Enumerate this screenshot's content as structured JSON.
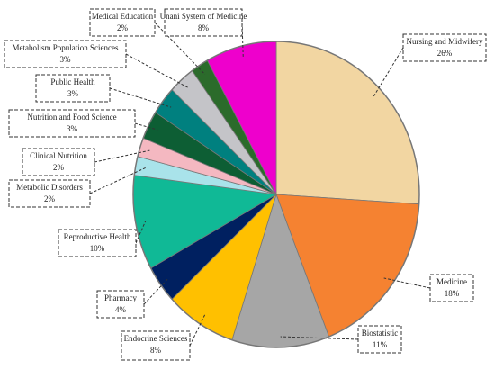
{
  "chart_data": {
    "type": "pie",
    "categories": [
      "Nursing and Midwifery",
      "Medicine",
      "Biostatistic",
      "Endocrine Sciences",
      "Pharmacy",
      "Reproductive Health",
      "Metabolic Disorders",
      "Clinical Nutrition",
      "Nutrition and Food Science",
      "Public Health",
      "Metabolism Population Sciences",
      "Medical Education",
      "Unani System of Medicine"
    ],
    "values": [
      26,
      18,
      11,
      8,
      4,
      10,
      2,
      2,
      3,
      3,
      3,
      2,
      8
    ],
    "value_labels": [
      "26%",
      "18%",
      "11%",
      "8%",
      "4%",
      "10%",
      "2%",
      "2%",
      "3%",
      "3%",
      "3%",
      "2%",
      "8%"
    ],
    "colors": [
      "#f2d6a2",
      "#f58231",
      "#a6a6a6",
      "#ffc000",
      "#002060",
      "#10b996",
      "#a9e3ea",
      "#f4b8c1",
      "#0d5e34",
      "#00807f",
      "#c4c4c8",
      "#2b6b2b",
      "#ee00cc"
    ]
  }
}
